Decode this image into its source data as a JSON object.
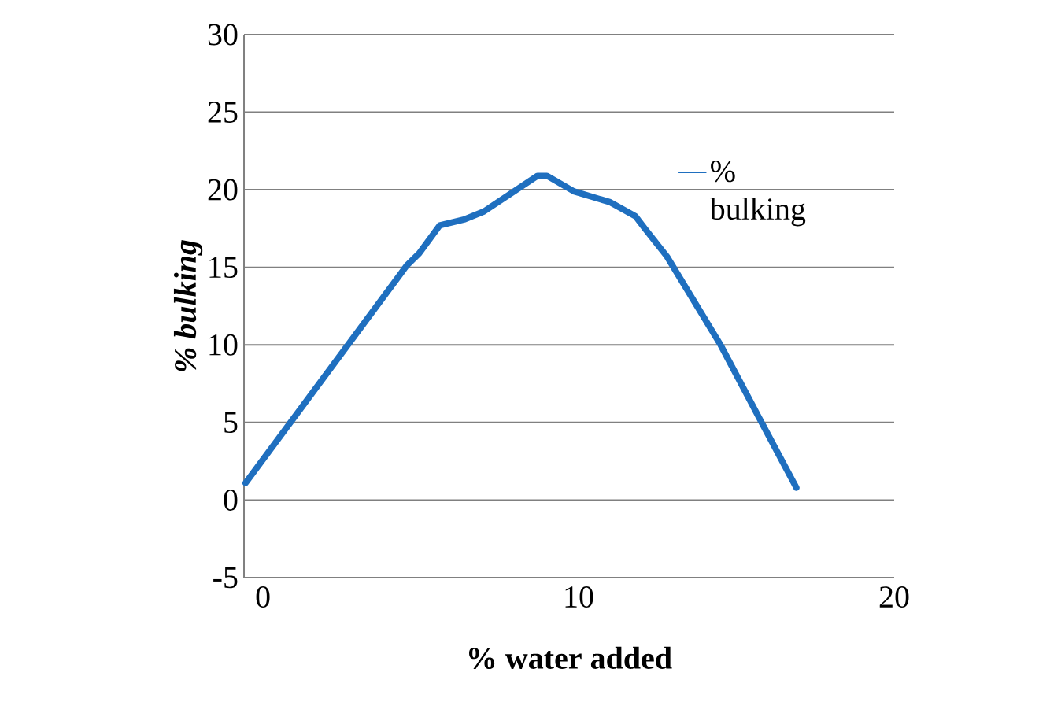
{
  "chart_data": {
    "type": "line",
    "xlabel": "% water added",
    "ylabel": "% bulking",
    "x": [
      -0.55,
      4.55,
      4.95,
      5.6,
      6.4,
      7.0,
      8.7,
      9.0,
      9.85,
      11.0,
      11.8,
      12.1,
      12.8,
      14.5,
      15.8,
      16.9
    ],
    "series": [
      {
        "name": "% bulking",
        "color": "#1f6fbf",
        "values": [
          1.1,
          15.1,
          15.9,
          17.7,
          18.1,
          18.6,
          20.9,
          20.9,
          19.9,
          19.2,
          18.3,
          17.5,
          15.7,
          10,
          5,
          0.8
        ]
      }
    ],
    "xlim": [
      -0.6,
      20
    ],
    "ylim": [
      -5,
      30
    ],
    "xticks": [
      0,
      10,
      20
    ],
    "yticks": [
      -5,
      0,
      5,
      10,
      15,
      20,
      25,
      30
    ],
    "grid": "y",
    "legend": "right",
    "marker": "none",
    "line_style": "solid"
  }
}
